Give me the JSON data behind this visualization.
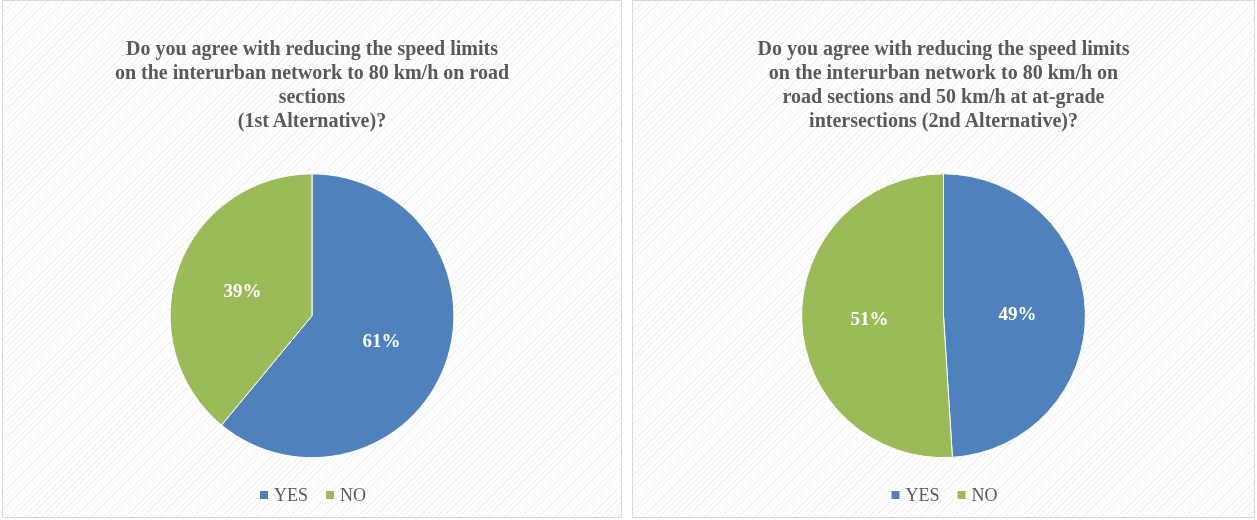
{
  "chart_data": [
    {
      "type": "pie",
      "title": "Do you agree with reducing the speed limits\non the interurban network to 80 km/h on road\nsections\n(1st Alternative)?",
      "categories": [
        "YES",
        "NO"
      ],
      "values": [
        61,
        39
      ],
      "colors": [
        "#4f81bd",
        "#9bbb59"
      ],
      "value_labels": [
        "61%",
        "39%"
      ],
      "legend": "bottom"
    },
    {
      "type": "pie",
      "title": "Do you agree with reducing the speed limits\non the interurban network to 80 km/h on\nroad sections and 50 km/h at at-grade\nintersections (2nd Alternative)?",
      "categories": [
        "YES",
        "NO"
      ],
      "values": [
        49,
        51
      ],
      "colors": [
        "#4f81bd",
        "#9bbb59"
      ],
      "value_labels": [
        "49%",
        "51%"
      ],
      "legend": "bottom"
    }
  ]
}
